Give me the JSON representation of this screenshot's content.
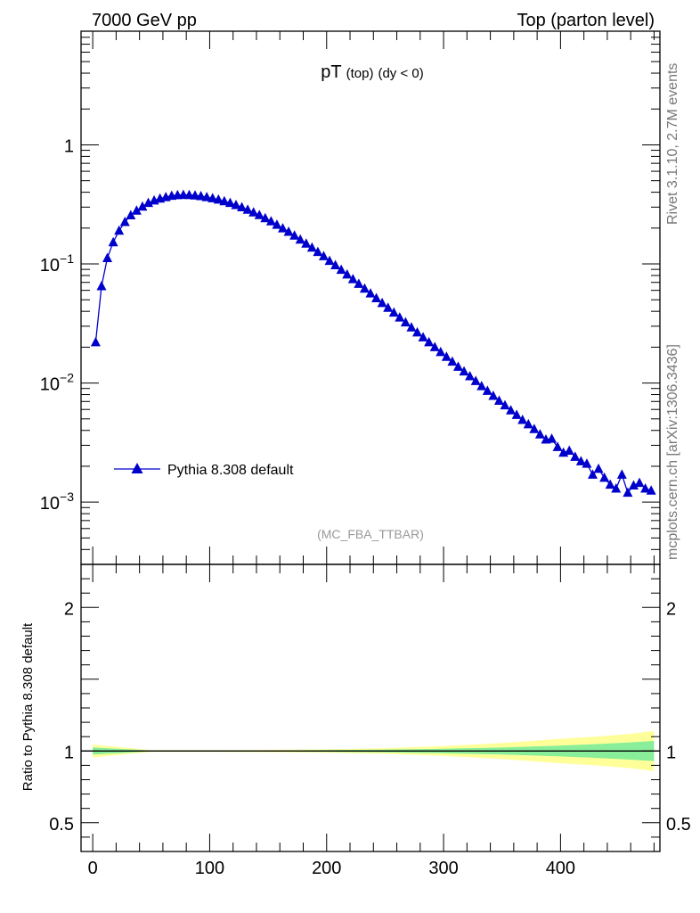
{
  "header": {
    "left": "7000 GeV pp",
    "right": "Top (parton level)"
  },
  "side": {
    "rivet": "Rivet 3.1.10,  2.7M events",
    "mcplots": "mcplots.cern.ch [arXiv:1306.3436]"
  },
  "chart_data": [
    {
      "type": "line",
      "title_main": "pT",
      "title_sub": "(top)",
      "title_cond": "(dy < 0)",
      "analysis_label": "(MC_FBA_TTBAR)",
      "yscale": "log",
      "ylim": [
        0.0003,
        9
      ],
      "xlim": [
        -10,
        485
      ],
      "yticks": [
        {
          "v": 1,
          "base": "1",
          "exp": ""
        },
        {
          "v": 0.1,
          "base": "10",
          "exp": "−1"
        },
        {
          "v": 0.01,
          "base": "10",
          "exp": "−2"
        },
        {
          "v": 0.001,
          "base": "10",
          "exp": "−3"
        }
      ],
      "legend": {
        "position": "bottom-left",
        "label": "Pythia 8.308 default"
      },
      "series": [
        {
          "name": "Pythia 8.308 default",
          "color": "#0000cc",
          "marker": "triangle",
          "x": [
            2.5,
            7.5,
            12.5,
            17.5,
            22.5,
            27.5,
            32.5,
            37.5,
            42.5,
            47.5,
            52.5,
            57.5,
            62.5,
            67.5,
            72.5,
            77.5,
            82.5,
            87.5,
            92.5,
            97.5,
            102.5,
            107.5,
            112.5,
            117.5,
            122.5,
            127.5,
            132.5,
            137.5,
            142.5,
            147.5,
            152.5,
            157.5,
            162.5,
            167.5,
            172.5,
            177.5,
            182.5,
            187.5,
            192.5,
            197.5,
            202.5,
            207.5,
            212.5,
            217.5,
            222.5,
            227.5,
            232.5,
            237.5,
            242.5,
            247.5,
            252.5,
            257.5,
            262.5,
            267.5,
            272.5,
            277.5,
            282.5,
            287.5,
            292.5,
            297.5,
            302.5,
            307.5,
            312.5,
            317.5,
            322.5,
            327.5,
            332.5,
            337.5,
            342.5,
            347.5,
            352.5,
            357.5,
            362.5,
            367.5,
            372.5,
            377.5,
            382.5,
            387.5,
            392.5,
            397.5,
            402.5,
            407.5,
            412.5,
            417.5,
            422.5,
            427.5,
            432.5,
            437.5,
            442.5,
            447.5,
            452.5,
            457.5,
            462.5,
            467.5,
            472.5,
            477.5
          ],
          "y": [
            0.022,
            0.065,
            0.112,
            0.152,
            0.19,
            0.225,
            0.256,
            0.28,
            0.303,
            0.325,
            0.341,
            0.354,
            0.364,
            0.373,
            0.378,
            0.38,
            0.379,
            0.376,
            0.371,
            0.364,
            0.356,
            0.347,
            0.336,
            0.325,
            0.312,
            0.299,
            0.285,
            0.271,
            0.257,
            0.242,
            0.228,
            0.213,
            0.199,
            0.186,
            0.173,
            0.16,
            0.148,
            0.137,
            0.126,
            0.116,
            0.106,
            0.0975,
            0.0892,
            0.0815,
            0.0745,
            0.068,
            0.062,
            0.0565,
            0.0515,
            0.047,
            0.0428,
            0.039,
            0.0355,
            0.0323,
            0.0293,
            0.0266,
            0.0242,
            0.022,
            0.02,
            0.0182,
            0.0166,
            0.0151,
            0.0137,
            0.0125,
            0.0114,
            0.0104,
            0.0094,
            0.0086,
            0.0078,
            0.0071,
            0.0065,
            0.0059,
            0.0054,
            0.0049,
            0.0045,
            0.0041,
            0.0037,
            0.00335,
            0.0034,
            0.0029,
            0.0026,
            0.0027,
            0.0024,
            0.0022,
            0.0021,
            0.0017,
            0.0019,
            0.0016,
            0.0014,
            0.0013,
            0.0017,
            0.0012,
            0.00138,
            0.00145,
            0.0013,
            0.00125
          ]
        }
      ]
    },
    {
      "type": "area",
      "ylabel": "Ratio to Pythia 8.308 default",
      "ylim": [
        0.3,
        2.3
      ],
      "xlim": [
        -10,
        485
      ],
      "yticks": [
        2,
        1,
        0.5
      ],
      "xticks": [
        0,
        100,
        200,
        300,
        400
      ],
      "reference": 1,
      "bands": {
        "green_color": "#88ee99",
        "yellow_color": "#ffff99",
        "x": [
          0,
          50,
          100,
          150,
          200,
          250,
          300,
          350,
          400,
          430,
          460,
          480
        ],
        "green_half": [
          0.025,
          0.003,
          0.003,
          0.004,
          0.006,
          0.01,
          0.016,
          0.024,
          0.038,
          0.048,
          0.06,
          0.07
        ],
        "yellow_half": [
          0.045,
          0.006,
          0.006,
          0.008,
          0.012,
          0.02,
          0.034,
          0.055,
          0.085,
          0.1,
          0.12,
          0.14
        ]
      }
    }
  ]
}
